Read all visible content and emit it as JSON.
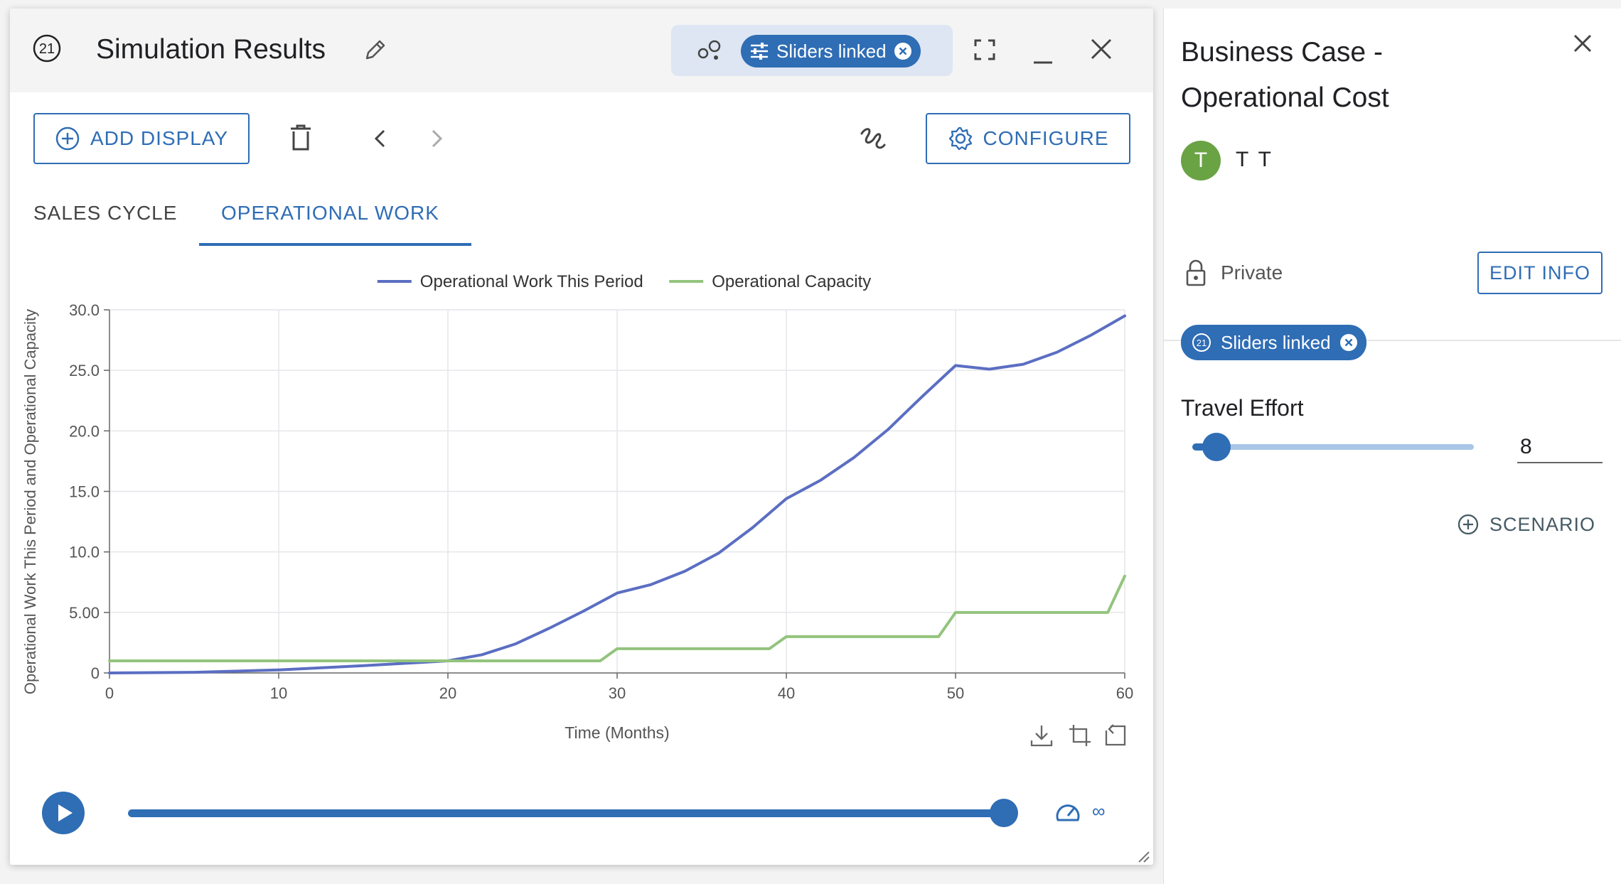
{
  "window": {
    "title": "Simulation Results",
    "title_badge": "21",
    "sliders_chip": "Sliders linked"
  },
  "toolbar": {
    "add_display": "ADD DISPLAY",
    "configure": "CONFIGURE"
  },
  "tabs": [
    {
      "label": "SALES CYCLE",
      "active": false
    },
    {
      "label": "OPERATIONAL WORK",
      "active": true
    }
  ],
  "chart_data": {
    "type": "line",
    "xlabel": "Time (Months)",
    "ylabel": "Operational Work This Period and Operational Capacity",
    "xlim": [
      0,
      60
    ],
    "ylim": [
      0,
      30
    ],
    "x_ticks": [
      "0",
      "10",
      "20",
      "30",
      "40",
      "50",
      "60"
    ],
    "y_ticks": [
      "0",
      "5.00",
      "10.0",
      "15.0",
      "20.0",
      "25.0",
      "30.0"
    ],
    "grid": true,
    "legend_position": "top",
    "series": [
      {
        "name": "Operational Work This Period",
        "color": "#5b6ec2",
        "x": [
          0,
          5,
          10,
          15,
          20,
          22,
          24,
          26,
          28,
          30,
          32,
          34,
          36,
          38,
          40,
          42,
          44,
          46,
          48,
          50,
          52,
          54,
          56,
          58,
          60
        ],
        "y": [
          0,
          0.05,
          0.25,
          0.6,
          1.0,
          1.5,
          2.4,
          3.7,
          5.1,
          6.6,
          7.3,
          8.4,
          9.9,
          12.0,
          14.4,
          15.9,
          17.8,
          20.1,
          22.8,
          25.4,
          25.1,
          25.5,
          26.5,
          27.9,
          29.5
        ]
      },
      {
        "name": "Operational Capacity",
        "color": "#93c47d",
        "x": [
          0,
          29,
          30,
          39,
          40,
          49,
          50,
          59,
          60
        ],
        "y": [
          1,
          1,
          2,
          2,
          3,
          3,
          5,
          5,
          8
        ]
      }
    ]
  },
  "timeline": {
    "speed_label": "∞",
    "progress": 0.98
  },
  "panel": {
    "title": "Business Case - Operational Cost",
    "avatar_letter": "T",
    "user_name": "T T",
    "privacy": "Private",
    "edit_info": "EDIT INFO",
    "sliders_chip": "Sliders linked",
    "chip_badge": "21",
    "travel_effort": {
      "label": "Travel Effort",
      "value": "8",
      "level": 0.08
    },
    "scenario": "SCENARIO"
  },
  "icons": [
    "badge-21-icon",
    "pencil-icon",
    "link-nodes-icon",
    "sliders-icon",
    "chip-close-icon",
    "fullscreen-icon",
    "minimize-icon",
    "close-icon",
    "plus-circle-icon",
    "trash-icon",
    "chevron-left-icon",
    "chevron-right-icon",
    "scribble-icon",
    "gear-icon",
    "download-icon",
    "crop-icon",
    "reset-icon",
    "play-icon",
    "speed-gauge-icon",
    "resize-handle-icon",
    "lock-icon"
  ],
  "colors": {
    "accent": "#2f6db5",
    "work_line": "#5b6ec2",
    "capacity_line": "#93c47d",
    "avatar": "#6aa344"
  }
}
